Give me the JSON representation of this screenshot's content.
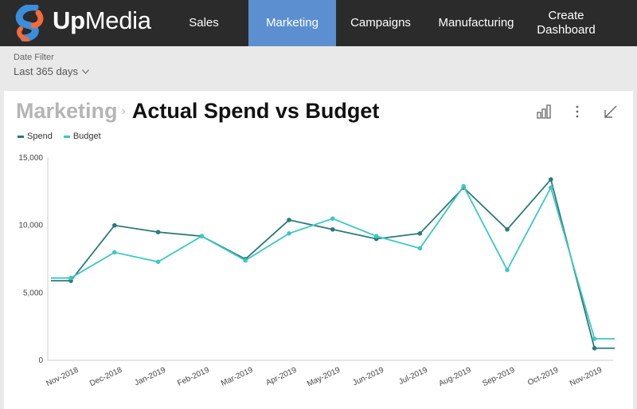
{
  "header": {
    "brand_part1": "Up",
    "brand_part2": "Media",
    "nav": [
      {
        "label": "Sales",
        "active": false
      },
      {
        "label": "Marketing",
        "active": true
      },
      {
        "label": "Campaigns",
        "active": false
      },
      {
        "label": "Manufacturing",
        "active": false
      },
      {
        "label": "Create Dashboard",
        "active": false
      }
    ]
  },
  "filter": {
    "label": "Date Filter",
    "value": "Last 365 days"
  },
  "card": {
    "breadcrumb": "Marketing",
    "separator": "›",
    "title": "Actual Spend vs Budget",
    "tools": [
      "bar-chart-icon",
      "more-vertical-icon",
      "collapse-icon"
    ]
  },
  "colors": {
    "spend": "#2b7a78",
    "budget": "#3cc8c4",
    "accent": "#5b8fd0",
    "header_bg": "#2b2b2b",
    "logo_blue": "#3a8edc",
    "logo_orange": "#f46b3b"
  },
  "chart_data": {
    "type": "line",
    "categories": [
      "Nov-2018",
      "Dec-2018",
      "Jan-2019",
      "Feb-2019",
      "Mar-2019",
      "Apr-2019",
      "May-2019",
      "Jun-2019",
      "Jul-2019",
      "Aug-2019",
      "Sep-2019",
      "Oct-2019",
      "Nov-2019"
    ],
    "series": [
      {
        "name": "Spend",
        "values": [
          5900,
          10000,
          9500,
          9200,
          7500,
          10400,
          9700,
          9000,
          9400,
          12800,
          9700,
          13400,
          900
        ]
      },
      {
        "name": "Budget",
        "values": [
          6100,
          8000,
          7300,
          9200,
          7400,
          9400,
          10500,
          9200,
          8300,
          12900,
          6700,
          12800,
          1600
        ]
      }
    ],
    "yticks": [
      "0",
      "5,000",
      "10,000",
      "15,000"
    ],
    "ylim": [
      0,
      15000
    ],
    "legend_position": "top-left"
  }
}
